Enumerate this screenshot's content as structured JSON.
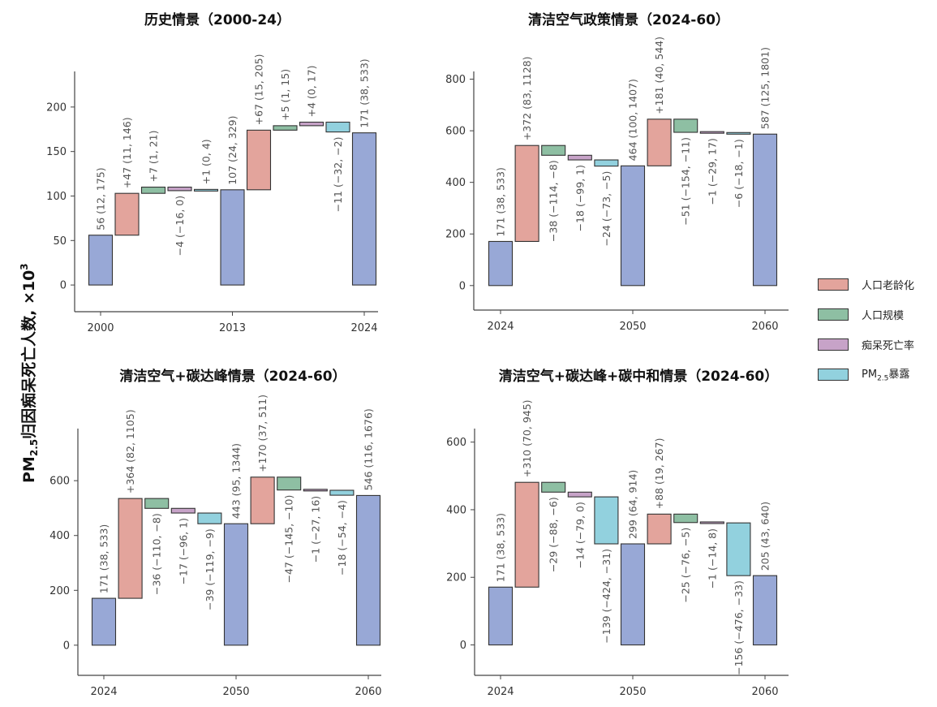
{
  "y_axis_title": {
    "prefix": "PM",
    "subscript": "2.5",
    "rest": "归因痴呆死亡人数, ×10",
    "superscript": "3"
  },
  "legend": {
    "items": [
      {
        "key": "aging",
        "label": "人口老龄化",
        "color": "#e3a49c"
      },
      {
        "key": "size",
        "label": "人口规模",
        "color": "#8ebfa3"
      },
      {
        "key": "mortality",
        "label": "痴呆死亡率",
        "color": "#c7a3c8"
      },
      {
        "key": "pm",
        "label_prefix": "PM",
        "label_sub": "2.5",
        "label_rest": "暴露",
        "color": "#92d1de"
      }
    ]
  },
  "colors": {
    "total": "#98a8d6",
    "stroke": "#333333",
    "axis": "#444444",
    "text": "#555555"
  },
  "chart_data": [
    {
      "type": "waterfall",
      "title": "历史情景（2000-24）",
      "ylim": [
        -30,
        240
      ],
      "yticks": [
        0,
        50,
        100,
        150,
        200
      ],
      "xticks": [
        "2000",
        "2013",
        "2024"
      ],
      "bars": [
        {
          "kind": "total",
          "value": 56,
          "label": "56 (12, 175)",
          "tick": "2000"
        },
        {
          "kind": "aging",
          "value": 47,
          "label": "+47 (11, 146)"
        },
        {
          "kind": "size",
          "value": 7,
          "label": "+7 (1, 21)"
        },
        {
          "kind": "mortality",
          "value": -4,
          "label": "−4 (−16, 0)"
        },
        {
          "kind": "pm",
          "value": 1,
          "label": "+1 (0, 4)"
        },
        {
          "kind": "total",
          "value": 107,
          "label": "107 (24, 329)",
          "tick": "2013"
        },
        {
          "kind": "aging",
          "value": 67,
          "label": "+67 (15, 205)"
        },
        {
          "kind": "size",
          "value": 5,
          "label": "+5 (1, 15)"
        },
        {
          "kind": "mortality",
          "value": 4,
          "label": "+4 (0, 17)"
        },
        {
          "kind": "pm",
          "value": -11,
          "label": "−11 (−32, −2)"
        },
        {
          "kind": "total",
          "value": 171,
          "label": "171 (38, 533)",
          "tick": "2024"
        }
      ]
    },
    {
      "type": "waterfall",
      "title": "清洁空气政策情景（2024-60）",
      "ylim": [
        -95,
        830
      ],
      "yticks": [
        0,
        200,
        400,
        600,
        800
      ],
      "xticks": [
        "2024",
        "2050",
        "2060"
      ],
      "bars": [
        {
          "kind": "total",
          "value": 171,
          "label": "171 (38, 533)",
          "tick": "2024"
        },
        {
          "kind": "aging",
          "value": 372,
          "label": "+372 (83, 1128)"
        },
        {
          "kind": "size",
          "value": -38,
          "label": "−38 (−114, −8)"
        },
        {
          "kind": "mortality",
          "value": -18,
          "label": "−18 (−99, 1)"
        },
        {
          "kind": "pm",
          "value": -24,
          "label": "−24 (−73, −5)"
        },
        {
          "kind": "total",
          "value": 464,
          "label": "464 (100, 1407)",
          "tick": "2050"
        },
        {
          "kind": "aging",
          "value": 181,
          "label": "+181 (40, 544)"
        },
        {
          "kind": "size",
          "value": -51,
          "label": "−51 (−154, −11)"
        },
        {
          "kind": "mortality",
          "value": -1,
          "label": "−1 (−29, 17)"
        },
        {
          "kind": "pm",
          "value": -6,
          "label": "−6 (−18, −1)"
        },
        {
          "kind": "total",
          "value": 587,
          "label": "587 (125, 1801)",
          "tick": "2060"
        }
      ]
    },
    {
      "type": "waterfall",
      "title": "清洁空气+碳达峰情景（2024-60）",
      "ylim": [
        -110,
        790
      ],
      "yticks": [
        0,
        200,
        400,
        600
      ],
      "xticks": [
        "2024",
        "2050",
        "2060"
      ],
      "bars": [
        {
          "kind": "total",
          "value": 171,
          "label": "171 (38, 533)",
          "tick": "2024"
        },
        {
          "kind": "aging",
          "value": 364,
          "label": "+364 (82, 1105)"
        },
        {
          "kind": "size",
          "value": -36,
          "label": "−36 (−110, −8)"
        },
        {
          "kind": "mortality",
          "value": -17,
          "label": "−17 (−96, 1)"
        },
        {
          "kind": "pm",
          "value": -39,
          "label": "−39 (−119, −9)"
        },
        {
          "kind": "total",
          "value": 443,
          "label": "443 (95, 1344)",
          "tick": "2050"
        },
        {
          "kind": "aging",
          "value": 170,
          "label": "+170 (37, 511)"
        },
        {
          "kind": "size",
          "value": -47,
          "label": "−47 (−145, −10)"
        },
        {
          "kind": "mortality",
          "value": -1,
          "label": "−1 (−27, 16)"
        },
        {
          "kind": "pm",
          "value": -18,
          "label": "−18 (−54, −4)"
        },
        {
          "kind": "total",
          "value": 546,
          "label": "546 (116, 1676)",
          "tick": "2060"
        }
      ]
    },
    {
      "type": "waterfall",
      "title": "清洁空气+碳达峰+碳中和情景（2024-60）",
      "ylim": [
        -90,
        640
      ],
      "yticks": [
        0,
        200,
        400,
        600
      ],
      "xticks": [
        "2024",
        "2050",
        "2060"
      ],
      "bars": [
        {
          "kind": "total",
          "value": 171,
          "label": "171 (38, 533)",
          "tick": "2024"
        },
        {
          "kind": "aging",
          "value": 310,
          "label": "+310 (70, 945)"
        },
        {
          "kind": "size",
          "value": -29,
          "label": "−29 (−88, −6)"
        },
        {
          "kind": "mortality",
          "value": -14,
          "label": "−14 (−79, 0)"
        },
        {
          "kind": "pm",
          "value": -139,
          "label": "−139 (−424, −31)"
        },
        {
          "kind": "total",
          "value": 299,
          "label": "299 (64, 914)",
          "tick": "2050"
        },
        {
          "kind": "aging",
          "value": 88,
          "label": "+88 (19, 267)"
        },
        {
          "kind": "size",
          "value": -25,
          "label": "−25 (−76, −5)"
        },
        {
          "kind": "mortality",
          "value": -1,
          "label": "−1 (−14, 8)"
        },
        {
          "kind": "pm",
          "value": -156,
          "label": "−156 (−476, −33)"
        },
        {
          "kind": "total",
          "value": 205,
          "label": "205 (43, 640)",
          "tick": "2060"
        }
      ]
    }
  ]
}
